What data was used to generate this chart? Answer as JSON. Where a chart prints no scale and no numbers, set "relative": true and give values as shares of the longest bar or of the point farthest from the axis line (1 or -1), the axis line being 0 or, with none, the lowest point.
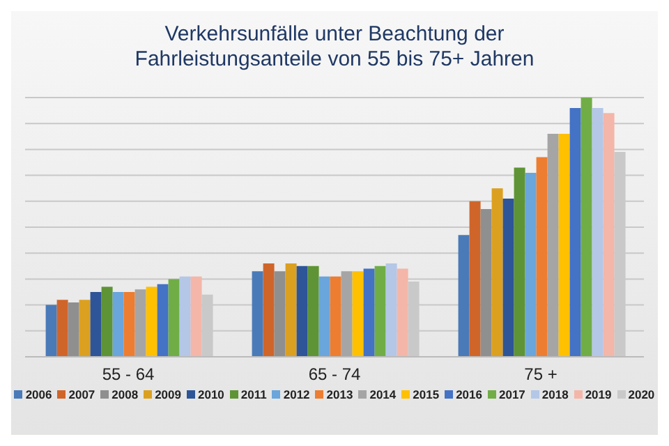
{
  "chart_data": {
    "type": "bar",
    "title": "Verkehrsunfälle unter Beachtung der Fahrleistungsanteile von 55 bis 75+ Jahren",
    "categories": [
      "55 - 64",
      "65 - 74",
      "75 +"
    ],
    "relative": true,
    "grid": "y",
    "legend": "bottom",
    "series": [
      {
        "name": "2006",
        "color": "#4a7ab8",
        "values": [
          0.2,
          0.33,
          0.47
        ]
      },
      {
        "name": "2007",
        "color": "#d0652a",
        "values": [
          0.22,
          0.36,
          0.6
        ]
      },
      {
        "name": "2008",
        "color": "#8f8f8f",
        "values": [
          0.21,
          0.33,
          0.57
        ]
      },
      {
        "name": "2009",
        "color": "#dca020",
        "values": [
          0.22,
          0.36,
          0.65
        ]
      },
      {
        "name": "2010",
        "color": "#2e5597",
        "values": [
          0.25,
          0.35,
          0.61
        ]
      },
      {
        "name": "2011",
        "color": "#5e9435",
        "values": [
          0.27,
          0.35,
          0.73
        ]
      },
      {
        "name": "2012",
        "color": "#6aa5dc",
        "values": [
          0.25,
          0.31,
          0.71
        ]
      },
      {
        "name": "2013",
        "color": "#ed7d31",
        "values": [
          0.25,
          0.31,
          0.77
        ]
      },
      {
        "name": "2014",
        "color": "#a5a5a5",
        "values": [
          0.26,
          0.33,
          0.86
        ]
      },
      {
        "name": "2015",
        "color": "#ffc000",
        "values": [
          0.27,
          0.33,
          0.86
        ]
      },
      {
        "name": "2016",
        "color": "#4472c4",
        "values": [
          0.28,
          0.34,
          0.96
        ]
      },
      {
        "name": "2017",
        "color": "#70ad47",
        "values": [
          0.3,
          0.35,
          1
        ]
      },
      {
        "name": "2018",
        "color": "#b4c7e7",
        "values": [
          0.31,
          0.36,
          0.96
        ]
      },
      {
        "name": "2019",
        "color": "#f4b6a8",
        "values": [
          0.31,
          0.34,
          0.94
        ]
      },
      {
        "name": "2020",
        "color": "#c9c9c9",
        "values": [
          0.24,
          0.29,
          0.79
        ]
      }
    ]
  }
}
